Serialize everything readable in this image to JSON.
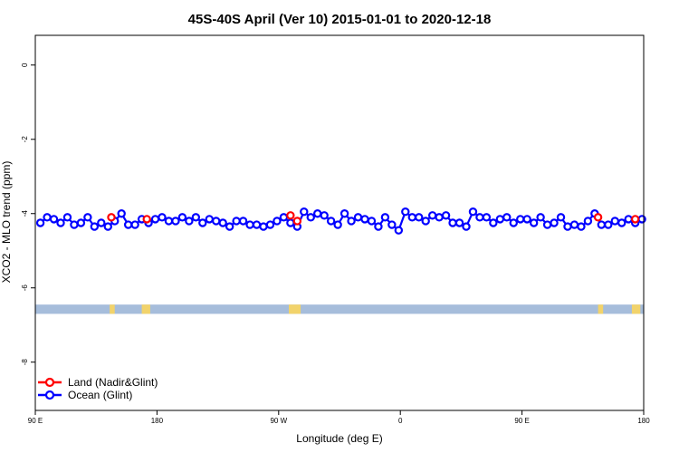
{
  "chart_data": {
    "type": "scatter",
    "title": "45S-40S April (Ver 10)   2015-01-01 to 2020-12-18",
    "xlabel": "Longitude (deg E)",
    "ylabel": "XCO2 - MLO trend (ppm)",
    "xlim": [
      90,
      450
    ],
    "ylim": [
      -9.3,
      0.8
    ],
    "x_ticks": [
      {
        "value": 90,
        "label": "90 E"
      },
      {
        "value": 162,
        "label": "180"
      },
      {
        "value": 234,
        "label": "90 W"
      },
      {
        "value": 306,
        "label": "0"
      },
      {
        "value": 378,
        "label": "90 E"
      },
      {
        "value": 450,
        "label": "180"
      }
    ],
    "y_ticks": [
      {
        "value": 0,
        "label": "0"
      },
      {
        "value": -2,
        "label": "-2"
      },
      {
        "value": -4,
        "label": "-4"
      },
      {
        "value": -6,
        "label": "-6"
      },
      {
        "value": -8,
        "label": "-8"
      }
    ],
    "grid": false,
    "legend_position": "bottom-left",
    "series": [
      {
        "name": "Land (Nadir&Glint)",
        "color": "#ff0000",
        "marker": "open-circle",
        "points": [
          {
            "x": 135,
            "y": -4.1
          },
          {
            "x": 156,
            "y": -4.15
          },
          {
            "x": 241,
            "y": -4.05
          },
          {
            "x": 245,
            "y": -4.2
          },
          {
            "x": 423,
            "y": -4.1
          },
          {
            "x": 445,
            "y": -4.15
          }
        ]
      },
      {
        "name": "Ocean (Glint)",
        "color": "#0000ff",
        "marker": "open-circle",
        "line": true,
        "points": [
          {
            "x": 93,
            "y": -4.25
          },
          {
            "x": 97,
            "y": -4.1
          },
          {
            "x": 101,
            "y": -4.15
          },
          {
            "x": 105,
            "y": -4.25
          },
          {
            "x": 109,
            "y": -4.1
          },
          {
            "x": 113,
            "y": -4.3
          },
          {
            "x": 117,
            "y": -4.25
          },
          {
            "x": 121,
            "y": -4.1
          },
          {
            "x": 125,
            "y": -4.35
          },
          {
            "x": 129,
            "y": -4.25
          },
          {
            "x": 133,
            "y": -4.35
          },
          {
            "x": 137,
            "y": -4.2
          },
          {
            "x": 141,
            "y": -4.0
          },
          {
            "x": 145,
            "y": -4.3
          },
          {
            "x": 149,
            "y": -4.3
          },
          {
            "x": 153,
            "y": -4.15
          },
          {
            "x": 157,
            "y": -4.25
          },
          {
            "x": 161,
            "y": -4.15
          },
          {
            "x": 165,
            "y": -4.1
          },
          {
            "x": 169,
            "y": -4.2
          },
          {
            "x": 173,
            "y": -4.2
          },
          {
            "x": 177,
            "y": -4.1
          },
          {
            "x": 181,
            "y": -4.2
          },
          {
            "x": 185,
            "y": -4.1
          },
          {
            "x": 189,
            "y": -4.25
          },
          {
            "x": 193,
            "y": -4.15
          },
          {
            "x": 197,
            "y": -4.2
          },
          {
            "x": 201,
            "y": -4.25
          },
          {
            "x": 205,
            "y": -4.35
          },
          {
            "x": 209,
            "y": -4.2
          },
          {
            "x": 213,
            "y": -4.2
          },
          {
            "x": 217,
            "y": -4.3
          },
          {
            "x": 221,
            "y": -4.3
          },
          {
            "x": 225,
            "y": -4.35
          },
          {
            "x": 229,
            "y": -4.3
          },
          {
            "x": 233,
            "y": -4.2
          },
          {
            "x": 237,
            "y": -4.1
          },
          {
            "x": 241,
            "y": -4.25
          },
          {
            "x": 245,
            "y": -4.35
          },
          {
            "x": 249,
            "y": -3.95
          },
          {
            "x": 253,
            "y": -4.1
          },
          {
            "x": 257,
            "y": -4.0
          },
          {
            "x": 261,
            "y": -4.05
          },
          {
            "x": 265,
            "y": -4.2
          },
          {
            "x": 269,
            "y": -4.3
          },
          {
            "x": 273,
            "y": -4.0
          },
          {
            "x": 277,
            "y": -4.2
          },
          {
            "x": 281,
            "y": -4.1
          },
          {
            "x": 285,
            "y": -4.15
          },
          {
            "x": 289,
            "y": -4.2
          },
          {
            "x": 293,
            "y": -4.35
          },
          {
            "x": 297,
            "y": -4.1
          },
          {
            "x": 301,
            "y": -4.3
          },
          {
            "x": 305,
            "y": -4.45
          },
          {
            "x": 309,
            "y": -3.95
          },
          {
            "x": 313,
            "y": -4.1
          },
          {
            "x": 317,
            "y": -4.1
          },
          {
            "x": 321,
            "y": -4.2
          },
          {
            "x": 325,
            "y": -4.05
          },
          {
            "x": 329,
            "y": -4.1
          },
          {
            "x": 333,
            "y": -4.05
          },
          {
            "x": 337,
            "y": -4.25
          },
          {
            "x": 341,
            "y": -4.25
          },
          {
            "x": 345,
            "y": -4.35
          },
          {
            "x": 349,
            "y": -3.95
          },
          {
            "x": 353,
            "y": -4.1
          },
          {
            "x": 357,
            "y": -4.1
          },
          {
            "x": 361,
            "y": -4.25
          },
          {
            "x": 365,
            "y": -4.15
          },
          {
            "x": 369,
            "y": -4.1
          },
          {
            "x": 373,
            "y": -4.25
          },
          {
            "x": 377,
            "y": -4.15
          },
          {
            "x": 381,
            "y": -4.15
          },
          {
            "x": 385,
            "y": -4.25
          },
          {
            "x": 389,
            "y": -4.1
          },
          {
            "x": 393,
            "y": -4.3
          },
          {
            "x": 397,
            "y": -4.25
          },
          {
            "x": 401,
            "y": -4.1
          },
          {
            "x": 405,
            "y": -4.35
          },
          {
            "x": 409,
            "y": -4.3
          },
          {
            "x": 413,
            "y": -4.35
          },
          {
            "x": 417,
            "y": -4.2
          },
          {
            "x": 421,
            "y": -4.0
          },
          {
            "x": 425,
            "y": -4.3
          },
          {
            "x": 429,
            "y": -4.3
          },
          {
            "x": 433,
            "y": -4.2
          },
          {
            "x": 437,
            "y": -4.25
          },
          {
            "x": 441,
            "y": -4.15
          },
          {
            "x": 445,
            "y": -4.25
          },
          {
            "x": 449,
            "y": -4.15
          }
        ]
      }
    ],
    "land_mask_band": {
      "y_range": [
        -6.7,
        -6.45
      ],
      "ocean_color": "#a6bddb",
      "land_color": "#f2d36b",
      "land_segments": [
        [
          134,
          137
        ],
        [
          153,
          158
        ],
        [
          240,
          247
        ],
        [
          423,
          426
        ],
        [
          443,
          448
        ]
      ]
    }
  }
}
